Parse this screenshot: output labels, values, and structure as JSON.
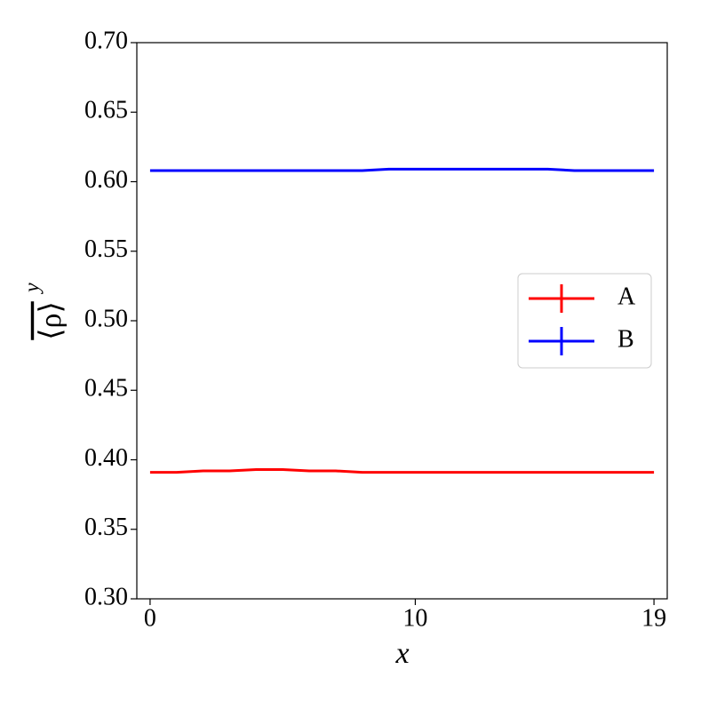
{
  "chart_data": {
    "type": "line",
    "xlabel": "x",
    "ylabel": "⟨ρ⟩",
    "ylabel_sup": "y",
    "x": [
      0,
      1,
      2,
      3,
      4,
      5,
      6,
      7,
      8,
      9,
      10,
      11,
      12,
      13,
      14,
      15,
      16,
      17,
      18,
      19
    ],
    "series": [
      {
        "name": "A",
        "color": "#ff0000",
        "values": [
          0.391,
          0.391,
          0.392,
          0.392,
          0.393,
          0.393,
          0.392,
          0.392,
          0.391,
          0.391,
          0.391,
          0.391,
          0.391,
          0.391,
          0.391,
          0.391,
          0.391,
          0.391,
          0.391,
          0.391
        ]
      },
      {
        "name": "B",
        "color": "#0000ff",
        "values": [
          0.608,
          0.608,
          0.608,
          0.608,
          0.608,
          0.608,
          0.608,
          0.608,
          0.608,
          0.609,
          0.609,
          0.609,
          0.609,
          0.609,
          0.609,
          0.609,
          0.608,
          0.608,
          0.608,
          0.608
        ]
      }
    ],
    "xlim": [
      -0.5,
      19.5
    ],
    "xticks": [
      0,
      10,
      19
    ],
    "ylim": [
      0.3,
      0.7
    ],
    "yticks": [
      {
        "value": 0.3,
        "label": "0.30"
      },
      0.35,
      {
        "value": 0.4,
        "label": "0.40"
      },
      0.45,
      {
        "value": 0.5,
        "label": "0.50"
      },
      0.55,
      {
        "value": 0.6,
        "label": "0.60"
      },
      0.65,
      {
        "value": 0.7,
        "label": "0.70"
      }
    ],
    "legend": "center right"
  }
}
